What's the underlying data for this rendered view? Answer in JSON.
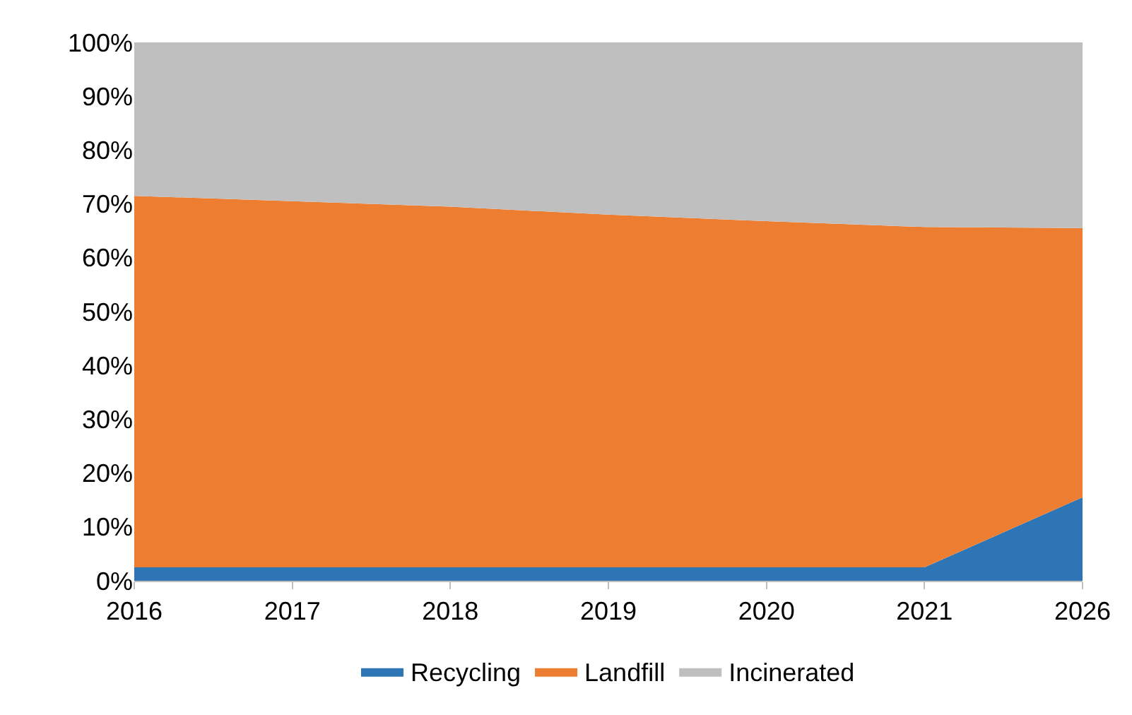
{
  "chart_data": {
    "type": "area",
    "stacked": true,
    "categories": [
      "2016",
      "2017",
      "2018",
      "2019",
      "2020",
      "2021",
      "2026"
    ],
    "series": [
      {
        "name": "Recycling",
        "color": "#2e75b6",
        "values": [
          2.5,
          2.5,
          2.5,
          2.5,
          2.5,
          2.5,
          15.5
        ]
      },
      {
        "name": "Landfill",
        "color": "#ed7d31",
        "values": [
          69,
          68,
          67,
          65.5,
          64.3,
          63.2,
          50
        ]
      },
      {
        "name": "Incinerated",
        "color": "#bfbfbf",
        "values": [
          28.5,
          29.5,
          30.5,
          32,
          33.2,
          34.3,
          34.5
        ]
      }
    ],
    "ylim": [
      0,
      100
    ],
    "yticks": [
      {
        "value": 0,
        "label": "0%"
      },
      {
        "value": 10,
        "label": "10%"
      },
      {
        "value": 20,
        "label": "20%"
      },
      {
        "value": 30,
        "label": "30%"
      },
      {
        "value": 40,
        "label": "40%"
      },
      {
        "value": 50,
        "label": "50%"
      },
      {
        "value": 60,
        "label": "60%"
      },
      {
        "value": 70,
        "label": "70%"
      },
      {
        "value": 80,
        "label": "80%"
      },
      {
        "value": 90,
        "label": "90%"
      },
      {
        "value": 100,
        "label": "100%"
      }
    ],
    "legend": "bottom"
  }
}
